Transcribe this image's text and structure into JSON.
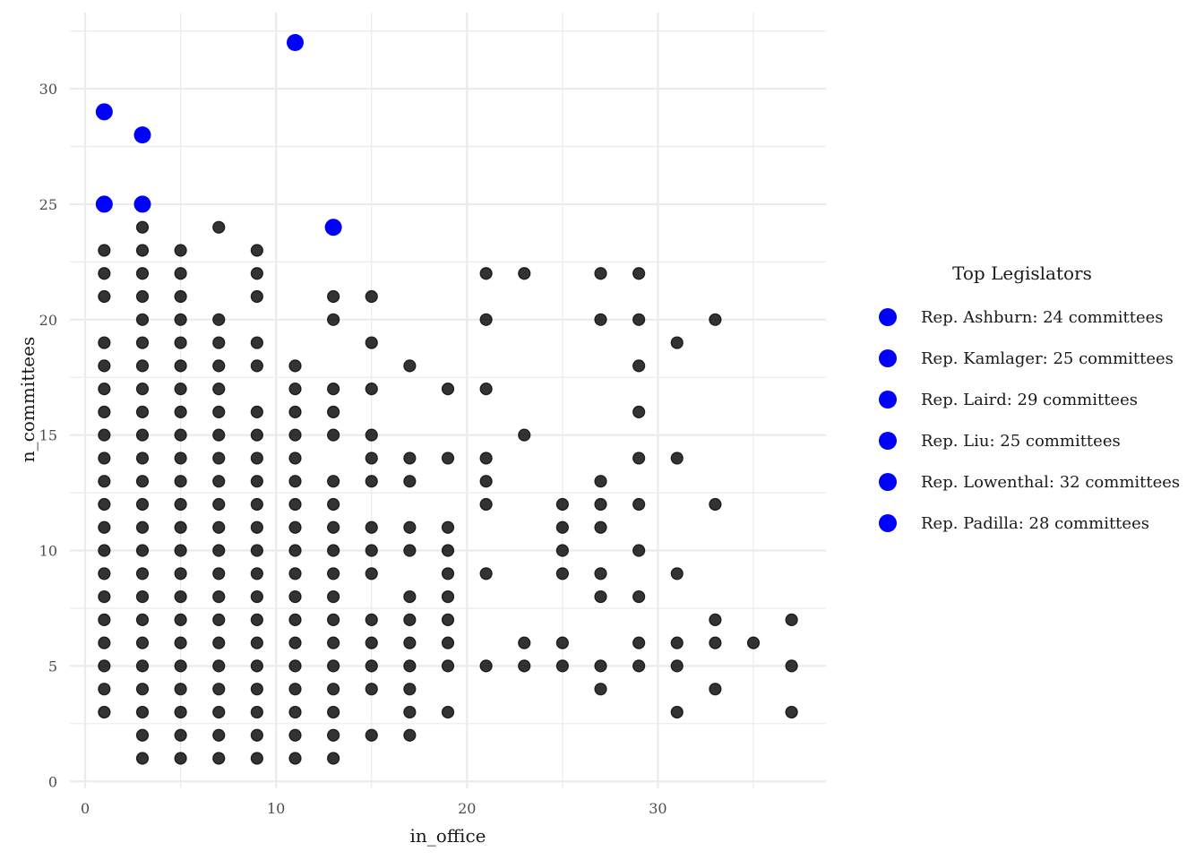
{
  "chart_data": {
    "type": "scatter",
    "xlabel": "in_office",
    "ylabel": "n_committees",
    "xlim": [
      -0.8,
      38.8
    ],
    "ylim": [
      -0.3,
      33.3
    ],
    "x_ticks": [
      0,
      10,
      20,
      30
    ],
    "y_ticks": [
      0,
      5,
      10,
      15,
      20,
      25,
      30
    ],
    "grid": true,
    "legend_position": "right",
    "colors": {
      "points": "#000000",
      "highlight": "#0000ff",
      "grid": "#ebebeb"
    },
    "legend": {
      "title": "Top Legislators",
      "entries": [
        "Rep. Ashburn: 24 committees",
        "Rep. Kamlager: 25 committees",
        "Rep. Laird: 29 committees",
        "Rep. Liu: 25 committees",
        "Rep. Lowenthal: 32 committees",
        "Rep. Padilla: 28 committees"
      ]
    },
    "highlighted": [
      {
        "x": 11,
        "y": 32
      },
      {
        "x": 1,
        "y": 29
      },
      {
        "x": 3,
        "y": 28
      },
      {
        "x": 1,
        "y": 25
      },
      {
        "x": 3,
        "y": 25
      },
      {
        "x": 13,
        "y": 24
      }
    ],
    "series": [
      {
        "x": 1,
        "y": [
          3,
          4,
          5,
          6,
          7,
          8,
          9,
          10,
          11,
          12,
          13,
          14,
          15,
          16,
          17,
          18,
          19,
          21,
          22,
          23
        ]
      },
      {
        "x": 3,
        "y": [
          1,
          2,
          3,
          4,
          5,
          6,
          7,
          8,
          9,
          10,
          11,
          12,
          13,
          14,
          15,
          16,
          17,
          18,
          19,
          20,
          21,
          22,
          23,
          24
        ]
      },
      {
        "x": 5,
        "y": [
          1,
          2,
          3,
          4,
          5,
          6,
          7,
          8,
          9,
          10,
          11,
          12,
          13,
          14,
          15,
          16,
          17,
          18,
          19,
          20,
          21,
          22,
          23
        ]
      },
      {
        "x": 7,
        "y": [
          1,
          2,
          3,
          4,
          5,
          6,
          7,
          8,
          9,
          10,
          11,
          12,
          13,
          14,
          15,
          16,
          17,
          18,
          19,
          20,
          24
        ]
      },
      {
        "x": 9,
        "y": [
          1,
          2,
          3,
          4,
          5,
          6,
          7,
          8,
          9,
          10,
          11,
          12,
          13,
          14,
          15,
          16,
          18,
          19,
          21,
          22,
          23
        ]
      },
      {
        "x": 11,
        "y": [
          1,
          2,
          3,
          4,
          5,
          6,
          7,
          8,
          9,
          10,
          11,
          12,
          13,
          14,
          15,
          16,
          17,
          18
        ]
      },
      {
        "x": 13,
        "y": [
          1,
          2,
          3,
          4,
          5,
          6,
          7,
          8,
          9,
          10,
          11,
          12,
          13,
          15,
          16,
          17,
          20,
          21
        ]
      },
      {
        "x": 15,
        "y": [
          2,
          4,
          5,
          6,
          7,
          9,
          10,
          11,
          13,
          14,
          15,
          17,
          19,
          21
        ]
      },
      {
        "x": 17,
        "y": [
          2,
          3,
          4,
          5,
          6,
          7,
          8,
          10,
          11,
          13,
          14,
          18
        ]
      },
      {
        "x": 19,
        "y": [
          3,
          5,
          6,
          7,
          8,
          9,
          10,
          11,
          14,
          17
        ]
      },
      {
        "x": 21,
        "y": [
          5,
          9,
          12,
          13,
          14,
          17,
          20,
          22
        ]
      },
      {
        "x": 23,
        "y": [
          5,
          6,
          15,
          22
        ]
      },
      {
        "x": 25,
        "y": [
          5,
          6,
          9,
          10,
          11,
          12
        ]
      },
      {
        "x": 27,
        "y": [
          4,
          5,
          8,
          9,
          11,
          12,
          13,
          20,
          22
        ]
      },
      {
        "x": 29,
        "y": [
          5,
          6,
          8,
          10,
          12,
          14,
          16,
          18,
          20,
          22
        ]
      },
      {
        "x": 31,
        "y": [
          3,
          5,
          6,
          9,
          14,
          19
        ]
      },
      {
        "x": 33,
        "y": [
          4,
          6,
          7,
          12,
          20
        ]
      },
      {
        "x": 35,
        "y": [
          6
        ]
      },
      {
        "x": 37,
        "y": [
          3,
          5,
          7
        ]
      }
    ]
  }
}
